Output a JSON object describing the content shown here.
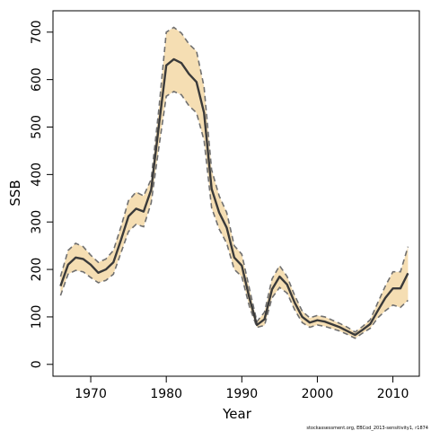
{
  "chart_data": {
    "type": "area",
    "xlabel": "Year",
    "ylabel": "SSB",
    "xlim": [
      1965,
      2013.5
    ],
    "ylim": [
      -25,
      745
    ],
    "x_ticks": [
      1970,
      1980,
      1990,
      2000,
      2010
    ],
    "y_ticks": [
      0,
      100,
      200,
      300,
      400,
      500,
      600,
      700
    ],
    "grid": false,
    "footnote": "stockassessment.org, EBCod_2013-sensitivity1, r1874",
    "colors": {
      "band": "#f5deb3",
      "bound": "#707070",
      "line": "#3a3a3a"
    },
    "x": [
      1966,
      1967,
      1968,
      1969,
      1970,
      1971,
      1972,
      1973,
      1974,
      1975,
      1976,
      1977,
      1978,
      1979,
      1980,
      1981,
      1982,
      1983,
      1984,
      1985,
      1986,
      1987,
      1988,
      1989,
      1990,
      1991,
      1992,
      1993,
      1994,
      1995,
      1996,
      1997,
      1998,
      1999,
      2000,
      2001,
      2002,
      2003,
      2004,
      2005,
      2006,
      2007,
      2008,
      2009,
      2010,
      2011,
      2012
    ],
    "series": [
      {
        "name": "",
        "role": "upper",
        "values": [
          185,
          240,
          255,
          248,
          230,
          215,
          222,
          240,
          290,
          345,
          363,
          355,
          390,
          535,
          700,
          710,
          698,
          675,
          660,
          585,
          410,
          355,
          320,
          250,
          232,
          160,
          90,
          110,
          180,
          208,
          185,
          145,
          112,
          98,
          103,
          100,
          93,
          86,
          78,
          68,
          80,
          94,
          130,
          165,
          195,
          195,
          248
        ]
      },
      {
        "name": "",
        "role": "estimate",
        "values": [
          165,
          210,
          225,
          222,
          210,
          193,
          200,
          215,
          262,
          312,
          328,
          322,
          368,
          500,
          630,
          643,
          635,
          612,
          595,
          530,
          370,
          320,
          288,
          225,
          208,
          140,
          83,
          95,
          158,
          185,
          168,
          130,
          100,
          88,
          93,
          90,
          84,
          78,
          70,
          62,
          73,
          85,
          113,
          140,
          160,
          160,
          192
        ]
      },
      {
        "name": "",
        "role": "lower",
        "values": [
          145,
          190,
          198,
          195,
          183,
          172,
          177,
          190,
          235,
          280,
          295,
          290,
          340,
          455,
          565,
          575,
          568,
          545,
          530,
          472,
          330,
          285,
          255,
          200,
          185,
          122,
          78,
          82,
          140,
          162,
          150,
          115,
          88,
          78,
          83,
          80,
          75,
          70,
          63,
          55,
          66,
          76,
          98,
          113,
          125,
          120,
          135
        ]
      }
    ]
  }
}
